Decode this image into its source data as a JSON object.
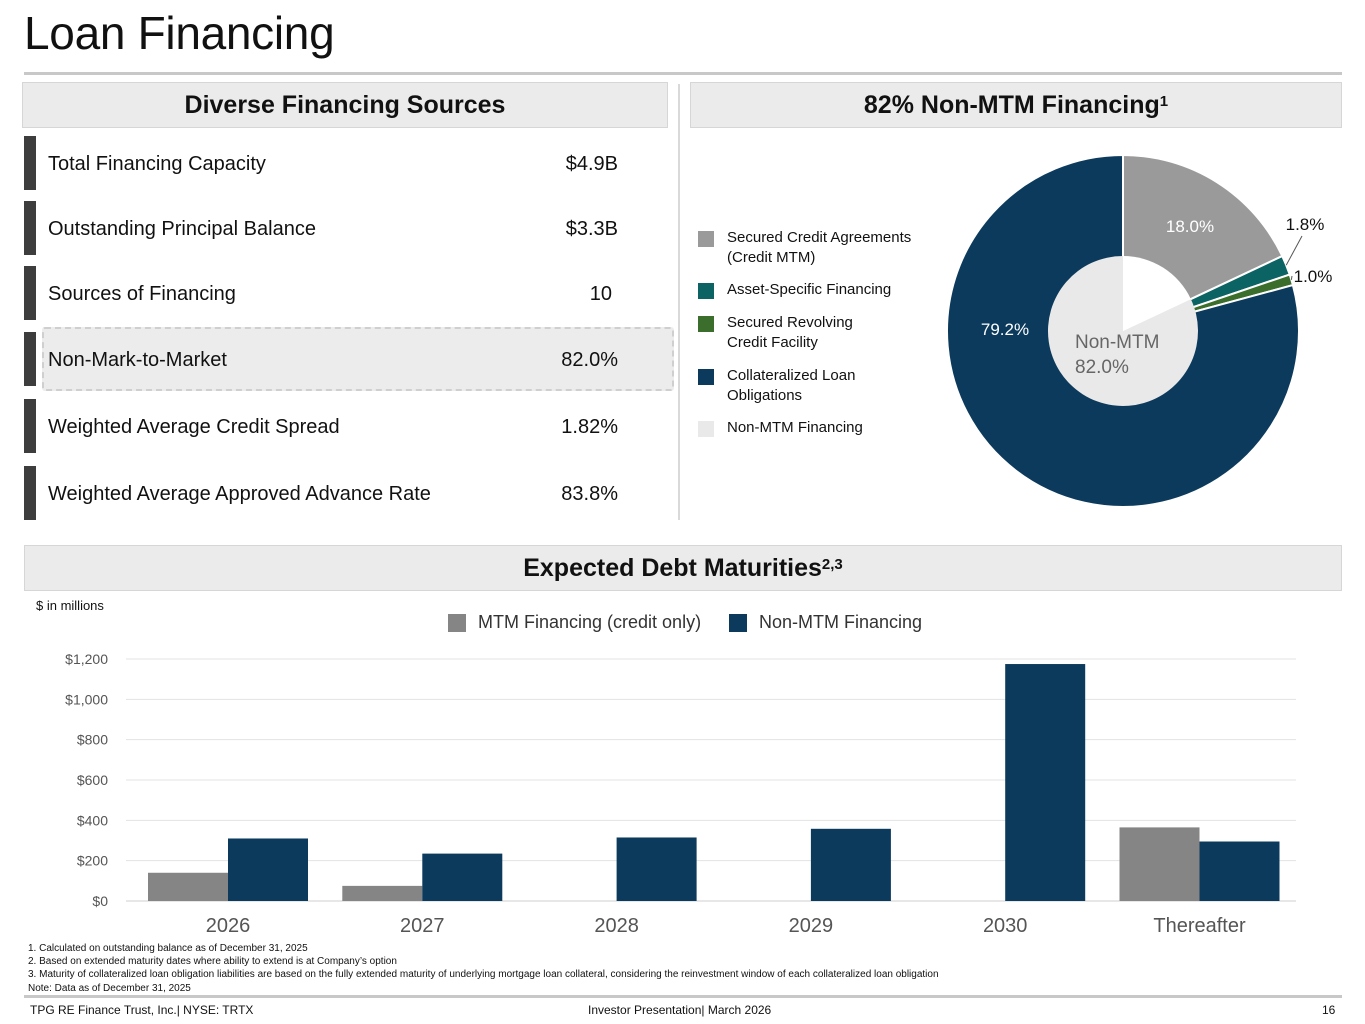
{
  "page": {
    "title": "Loan Financing"
  },
  "left_panel": {
    "header": "Diverse Financing Sources",
    "metrics": [
      {
        "label": "Total Financing Capacity",
        "value": "$4.9B"
      },
      {
        "label": "Outstanding Principal Balance",
        "value": "$3.3B"
      },
      {
        "label": "Sources of Financing",
        "value": "10"
      },
      {
        "label": "Non-Mark-to-Market",
        "value": "82.0%"
      },
      {
        "label": "Weighted Average Credit Spread",
        "value": "1.82%"
      },
      {
        "label": "Weighted Average Approved Advance Rate",
        "value": "83.8%"
      }
    ]
  },
  "right_panel": {
    "header": "82% Non-MTM Financing",
    "header_sup": "1",
    "legend": [
      {
        "label": "Secured Credit Agreements (Credit MTM)",
        "color": "#9a9a9a"
      },
      {
        "label": "Asset-Specific Financing",
        "color": "#0b6363"
      },
      {
        "label": "Secured Revolving Credit Facility",
        "color": "#3b6e2c"
      },
      {
        "label": "Collateralized Loan Obligations",
        "color": "#0c3a5c"
      },
      {
        "label": "Non-MTM Financing",
        "color": "#e9e9e9"
      }
    ],
    "center_label_line1": "Non-MTM",
    "center_label_line2": "82.0%"
  },
  "donut_data": {
    "type": "pie",
    "slices": [
      {
        "label": "18.0%",
        "value": 18.0,
        "color": "#9a9a9a"
      },
      {
        "label": "1.8%",
        "value": 1.8,
        "color": "#0b6363"
      },
      {
        "label": "1.0%",
        "value": 1.0,
        "color": "#3b6e2c"
      },
      {
        "label": "79.2%",
        "value": 79.2,
        "color": "#0c3a5c"
      }
    ],
    "inner": [
      {
        "label": "Non-MTM Financing",
        "value": 82.0,
        "color": "#e9e9e9"
      },
      {
        "label": "",
        "value": 18.0,
        "color": "#ffffff"
      }
    ]
  },
  "bottom_panel": {
    "header": "Expected Debt Maturities",
    "header_sup": "2,3",
    "note": "$ in millions"
  },
  "chart_data": {
    "type": "bar",
    "categories": [
      "2026",
      "2027",
      "2028",
      "2029",
      "2030",
      "Thereafter"
    ],
    "series": [
      {
        "name": "MTM Financing (credit only)",
        "color": "#858585",
        "values": [
          140,
          75,
          0,
          0,
          0,
          365
        ]
      },
      {
        "name": "Non-MTM Financing",
        "color": "#0c3a5c",
        "values": [
          310,
          235,
          315,
          358,
          1175,
          295
        ]
      }
    ],
    "ylim": [
      0,
      1200
    ],
    "yticks": [
      "$0",
      "$200",
      "$400",
      "$600",
      "$800",
      "$1,000",
      "$1,200"
    ],
    "grid": true,
    "legend_position": "top"
  },
  "footnotes": [
    "1. Calculated on outstanding balance as of December 31, 2025",
    "2. Based on extended maturity dates where ability to extend is at Company’s option",
    "3. Maturity of collateralized loan obligation liabilities are based on the fully extended maturity of underlying mortgage loan collateral, considering the reinvestment window of each collateralized loan obligation",
    "Note: Data as of December 31, 2025"
  ],
  "footer": {
    "left": "TPG RE Finance Trust, Inc.| NYSE: TRTX",
    "center": "Investor Presentation| March 2026",
    "page_number": "16"
  }
}
